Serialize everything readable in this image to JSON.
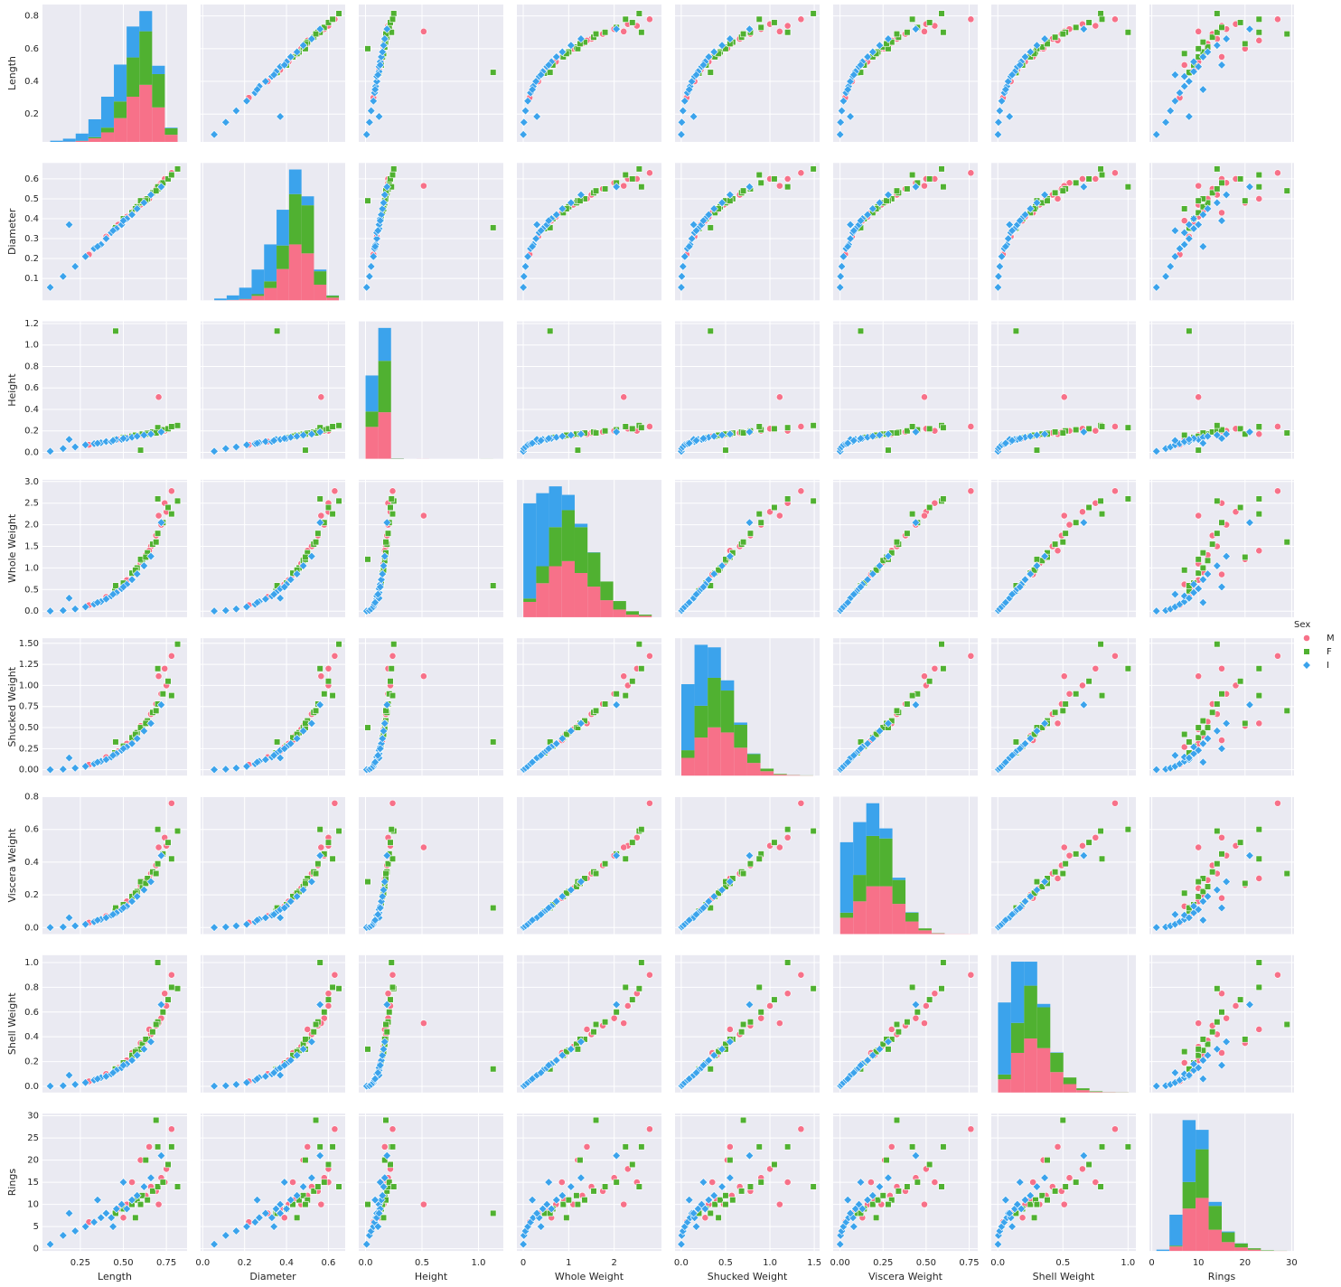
{
  "chart_data": {
    "type": "scatter",
    "legend_title": "Sex",
    "legend": "right",
    "grid": true,
    "variables": [
      {
        "name": "Length",
        "lim": [
          0.03,
          0.87
        ],
        "yticks": [
          0.2,
          0.4,
          0.6,
          0.8
        ],
        "xticks": [
          0.25,
          {
            "value": 0.5,
            "label": "0.50"
          },
          0.75
        ]
      },
      {
        "name": "Diameter",
        "lim": [
          -0.01,
          0.68
        ],
        "yticks": [
          0.1,
          0.2,
          0.3,
          0.4,
          0.5,
          0.6
        ],
        "xticks": [
          {
            "value": 0,
            "label": "0.0"
          },
          0.2,
          0.4,
          0.6
        ]
      },
      {
        "name": "Height",
        "lim": [
          -0.06,
          1.22
        ],
        "yticks": [
          {
            "value": 0,
            "label": "0.0"
          },
          0.2,
          0.4,
          0.6,
          0.8,
          {
            "value": 1,
            "label": "1.0"
          },
          1.2
        ],
        "xticks": [
          {
            "value": 0,
            "label": "0.0"
          },
          0.5,
          {
            "value": 1,
            "label": "1.0"
          }
        ]
      },
      {
        "name": "Whole Weight",
        "lim": [
          -0.14,
          3.04
        ],
        "yticks": [
          {
            "value": 0,
            "label": "0.0"
          },
          0.5,
          {
            "value": 1,
            "label": "1.0"
          },
          1.5,
          {
            "value": 2,
            "label": "2.0"
          },
          2.5,
          {
            "value": 3,
            "label": "3.0"
          }
        ],
        "xticks": [
          0,
          1,
          2
        ]
      },
      {
        "name": "Shucked Weight",
        "lim": [
          -0.07,
          1.56
        ],
        "yticks": [
          {
            "value": 0,
            "label": "0.00"
          },
          0.25,
          {
            "value": 0.5,
            "label": "0.50"
          },
          0.75,
          {
            "value": 1,
            "label": "1.00"
          },
          1.25,
          {
            "value": 1.5,
            "label": "1.50"
          }
        ],
        "xticks": [
          {
            "value": 0,
            "label": "0.0"
          },
          0.5,
          {
            "value": 1,
            "label": "1.0"
          },
          1.5
        ]
      },
      {
        "name": "Viscera Weight",
        "lim": [
          -0.04,
          0.8
        ],
        "yticks": [
          {
            "value": 0,
            "label": "0.0"
          },
          0.2,
          0.4,
          0.6,
          0.8
        ],
        "xticks": [
          {
            "value": 0,
            "label": "0.00"
          },
          0.25,
          {
            "value": 0.5,
            "label": "0.50"
          },
          0.75
        ]
      },
      {
        "name": "Shell Weight",
        "lim": [
          -0.05,
          1.06
        ],
        "yticks": [
          {
            "value": 0,
            "label": "0.0"
          },
          0.2,
          0.4,
          0.6,
          0.8,
          {
            "value": 1,
            "label": "1.0"
          }
        ],
        "xticks": [
          {
            "value": 0,
            "label": "0.0"
          },
          0.5,
          {
            "value": 1,
            "label": "1.0"
          }
        ]
      },
      {
        "name": "Rings",
        "lim": [
          -0.5,
          30.5
        ],
        "yticks": [
          0,
          5,
          10,
          15,
          20,
          25,
          30
        ],
        "xticks": [
          0,
          10,
          20,
          30
        ]
      }
    ],
    "hist_bins": [
      [
        0.075,
        0.149,
        0.223,
        0.297,
        0.371,
        0.445,
        0.519,
        0.593,
        0.667,
        0.741,
        0.815
      ],
      [
        0.055,
        0.1145,
        0.174,
        0.2335,
        0.293,
        0.3525,
        0.412,
        0.4715,
        0.531,
        0.5905,
        0.65
      ],
      [
        0,
        0.113,
        0.226,
        0.339,
        0.452,
        0.565,
        0.678,
        0.791,
        0.904,
        1.017,
        1.13
      ],
      [
        0.002,
        0.2844,
        0.5668,
        0.8492,
        1.1316,
        1.414,
        1.6964,
        1.9788,
        2.2612,
        2.5436,
        2.826
      ],
      [
        0.001,
        0.1497,
        0.2984,
        0.4471,
        0.5958,
        0.7445,
        0.8932,
        1.0419,
        1.1906,
        1.3393,
        1.488
      ],
      [
        0.0005,
        0.07645,
        0.1524,
        0.22835,
        0.3043,
        0.38025,
        0.4562,
        0.53215,
        0.6081,
        0.68405,
        0.76
      ],
      [
        0.0015,
        0.10185,
        0.2022,
        0.30255,
        0.4029,
        0.50325,
        0.6036,
        0.70395,
        0.8043,
        0.90465,
        1.005
      ],
      [
        1,
        3.8,
        6.6,
        9.4,
        12.2,
        15,
        17.8,
        20.6,
        23.4,
        26.2,
        29
      ]
    ],
    "series": [
      {
        "name": "M",
        "color": "#f77189",
        "marker": "circle",
        "hist": [
          [
            0,
            2,
            8,
            30,
            80,
            200,
            380,
            480,
            290,
            60
          ],
          [
            1,
            3,
            10,
            40,
            110,
            280,
            500,
            420,
            140,
            24
          ],
          [
            620,
            905,
            2,
            0,
            1,
            0,
            0,
            0,
            0,
            0
          ],
          [
            90,
            200,
            300,
            330,
            260,
            180,
            100,
            45,
            15,
            8
          ],
          [
            140,
            300,
            380,
            340,
            220,
            100,
            35,
            8,
            4,
            1
          ],
          [
            130,
            260,
            380,
            380,
            240,
            100,
            30,
            6,
            1,
            1
          ],
          [
            110,
            330,
            450,
            370,
            170,
            70,
            20,
            5,
            2,
            1
          ],
          [
            0,
            50,
            480,
            600,
            240,
            100,
            40,
            15,
            2,
            1
          ]
        ],
        "samples": [
          [
            0.3,
            0.22,
            0.07,
            0.14,
            0.06,
            0.03,
            0.04,
            6
          ],
          [
            0.4,
            0.31,
            0.1,
            0.33,
            0.15,
            0.07,
            0.1,
            8
          ],
          [
            0.47,
            0.37,
            0.12,
            0.52,
            0.22,
            0.11,
            0.15,
            9
          ],
          [
            0.52,
            0.41,
            0.14,
            0.72,
            0.31,
            0.16,
            0.21,
            10
          ],
          [
            0.56,
            0.44,
            0.15,
            0.9,
            0.4,
            0.2,
            0.25,
            11
          ],
          [
            0.6,
            0.47,
            0.16,
            1.1,
            0.48,
            0.24,
            0.32,
            10
          ],
          [
            0.63,
            0.5,
            0.17,
            1.3,
            0.57,
            0.29,
            0.37,
            12
          ],
          [
            0.66,
            0.52,
            0.18,
            1.5,
            0.66,
            0.33,
            0.42,
            14
          ],
          [
            0.69,
            0.55,
            0.19,
            1.75,
            0.78,
            0.38,
            0.49,
            13
          ],
          [
            0.72,
            0.58,
            0.2,
            2.0,
            0.9,
            0.44,
            0.55,
            16
          ],
          [
            0.75,
            0.6,
            0.22,
            2.3,
            1.0,
            0.5,
            0.65,
            18
          ],
          [
            0.78,
            0.63,
            0.24,
            2.78,
            1.35,
            0.76,
            0.9,
            27
          ],
          [
            0.705,
            0.565,
            0.515,
            2.21,
            1.11,
            0.49,
            0.51,
            10
          ],
          [
            0.6,
            0.48,
            0.17,
            1.2,
            0.52,
            0.26,
            0.35,
            20
          ],
          [
            0.55,
            0.43,
            0.15,
            0.85,
            0.35,
            0.18,
            0.27,
            15
          ],
          [
            0.65,
            0.5,
            0.17,
            1.4,
            0.55,
            0.3,
            0.46,
            23
          ],
          [
            0.74,
            0.6,
            0.2,
            2.5,
            1.2,
            0.55,
            0.75,
            15
          ],
          [
            0.5,
            0.39,
            0.13,
            0.62,
            0.27,
            0.13,
            0.19,
            7
          ]
        ]
      },
      {
        "name": "F",
        "color": "#50b131",
        "marker": "square",
        "hist": [
          [
            0,
            0,
            2,
            10,
            40,
            140,
            330,
            450,
            280,
            55
          ],
          [
            0,
            1,
            3,
            15,
            60,
            210,
            450,
            430,
            120,
            18
          ],
          [
            300,
            1000,
            6,
            0,
            0,
            0,
            0,
            0,
            0,
            1
          ],
          [
            20,
            100,
            230,
            300,
            270,
            200,
            110,
            50,
            20,
            7
          ],
          [
            60,
            250,
            390,
            330,
            180,
            70,
            20,
            5,
            1,
            1
          ],
          [
            40,
            210,
            400,
            380,
            190,
            70,
            15,
            2,
            0,
            0
          ],
          [
            40,
            250,
            440,
            340,
            160,
            55,
            15,
            5,
            1,
            1
          ],
          [
            0,
            10,
            300,
            550,
            270,
            110,
            45,
            15,
            5,
            1
          ]
        ],
        "samples": [
          [
            0.45,
            0.35,
            0.12,
            0.47,
            0.2,
            0.1,
            0.14,
            8
          ],
          [
            0.5,
            0.4,
            0.14,
            0.65,
            0.28,
            0.14,
            0.19,
            9
          ],
          [
            0.55,
            0.43,
            0.15,
            0.88,
            0.38,
            0.19,
            0.25,
            10
          ],
          [
            0.58,
            0.46,
            0.16,
            1.0,
            0.44,
            0.22,
            0.29,
            11
          ],
          [
            0.61,
            0.48,
            0.17,
            1.17,
            0.5,
            0.25,
            0.34,
            12
          ],
          [
            0.64,
            0.5,
            0.18,
            1.35,
            0.58,
            0.3,
            0.38,
            11
          ],
          [
            0.67,
            0.53,
            0.19,
            1.55,
            0.68,
            0.34,
            0.44,
            13
          ],
          [
            0.7,
            0.55,
            0.2,
            1.8,
            0.78,
            0.39,
            0.52,
            14
          ],
          [
            0.73,
            0.58,
            0.21,
            2.05,
            0.9,
            0.45,
            0.6,
            15
          ],
          [
            0.76,
            0.6,
            0.22,
            2.4,
            1.05,
            0.52,
            0.7,
            19
          ],
          [
            0.815,
            0.65,
            0.25,
            2.55,
            1.49,
            0.59,
            0.79,
            14
          ],
          [
            0.455,
            0.355,
            1.13,
            0.59,
            0.33,
            0.12,
            0.14,
            8
          ],
          [
            0.7,
            0.56,
            0.23,
            2.6,
            1.2,
            0.6,
            1.0,
            23
          ],
          [
            0.69,
            0.54,
            0.18,
            1.6,
            0.7,
            0.33,
            0.5,
            29
          ],
          [
            0.6,
            0.49,
            0.02,
            1.2,
            0.5,
            0.28,
            0.3,
            10
          ],
          [
            0.63,
            0.49,
            0.17,
            1.25,
            0.55,
            0.27,
            0.38,
            20
          ],
          [
            0.78,
            0.62,
            0.24,
            2.25,
            0.88,
            0.42,
            0.8,
            23
          ],
          [
            0.57,
            0.45,
            0.16,
            0.95,
            0.42,
            0.21,
            0.28,
            7
          ]
        ]
      },
      {
        "name": "I",
        "color": "#3ba3ec",
        "marker": "diamond",
        "hist": [
          [
            10,
            25,
            60,
            150,
            260,
            310,
            260,
            170,
            70,
            5
          ],
          [
            15,
            40,
            100,
            220,
            330,
            320,
            220,
            80,
            15,
            2
          ],
          [
            700,
            640,
            2,
            0,
            0,
            0,
            0,
            0,
            0,
            0
          ],
          [
            560,
            430,
            240,
            90,
            20,
            2,
            0,
            0,
            0,
            0
          ],
          [
            520,
            480,
            240,
            80,
            18,
            4,
            0,
            0,
            0,
            0
          ],
          [
            560,
            420,
            260,
            80,
            18,
            4,
            0,
            0,
            0,
            0
          ],
          [
            600,
            510,
            200,
            28,
            4,
            0,
            0,
            0,
            0,
            0
          ],
          [
            15,
            350,
            700,
            220,
            45,
            10,
            2,
            0,
            0,
            0
          ]
        ],
        "samples": [
          [
            0.075,
            0.055,
            0.01,
            0.002,
            0.001,
            0.0005,
            0.0015,
            1
          ],
          [
            0.15,
            0.11,
            0.035,
            0.015,
            0.006,
            0.003,
            0.005,
            3
          ],
          [
            0.22,
            0.16,
            0.05,
            0.05,
            0.02,
            0.01,
            0.015,
            4
          ],
          [
            0.28,
            0.21,
            0.07,
            0.1,
            0.04,
            0.02,
            0.03,
            5
          ],
          [
            0.33,
            0.25,
            0.08,
            0.16,
            0.07,
            0.035,
            0.05,
            6
          ],
          [
            0.37,
            0.27,
            0.09,
            0.22,
            0.1,
            0.05,
            0.07,
            7
          ],
          [
            0.4,
            0.3,
            0.1,
            0.28,
            0.12,
            0.06,
            0.08,
            8
          ],
          [
            0.43,
            0.33,
            0.1,
            0.35,
            0.15,
            0.075,
            0.1,
            7
          ],
          [
            0.46,
            0.35,
            0.12,
            0.43,
            0.19,
            0.09,
            0.13,
            9
          ],
          [
            0.49,
            0.37,
            0.12,
            0.52,
            0.23,
            0.11,
            0.15,
            10
          ],
          [
            0.52,
            0.4,
            0.13,
            0.62,
            0.27,
            0.13,
            0.18,
            9
          ],
          [
            0.55,
            0.42,
            0.14,
            0.73,
            0.31,
            0.16,
            0.21,
            11
          ],
          [
            0.58,
            0.45,
            0.15,
            0.86,
            0.37,
            0.19,
            0.25,
            12
          ],
          [
            0.62,
            0.48,
            0.16,
            1.05,
            0.46,
            0.23,
            0.3,
            14
          ],
          [
            0.66,
            0.52,
            0.17,
            1.27,
            0.55,
            0.28,
            0.36,
            16
          ],
          [
            0.72,
            0.56,
            0.19,
            2.05,
            0.77,
            0.44,
            0.66,
            21
          ],
          [
            0.185,
            0.37,
            0.12,
            0.3,
            0.14,
            0.06,
            0.09,
            8
          ],
          [
            0.44,
            0.34,
            0.11,
            0.39,
            0.17,
            0.08,
            0.11,
            5
          ],
          [
            0.5,
            0.39,
            0.13,
            0.56,
            0.25,
            0.12,
            0.17,
            15
          ],
          [
            0.35,
            0.26,
            0.085,
            0.2,
            0.09,
            0.045,
            0.06,
            11
          ]
        ]
      }
    ]
  }
}
